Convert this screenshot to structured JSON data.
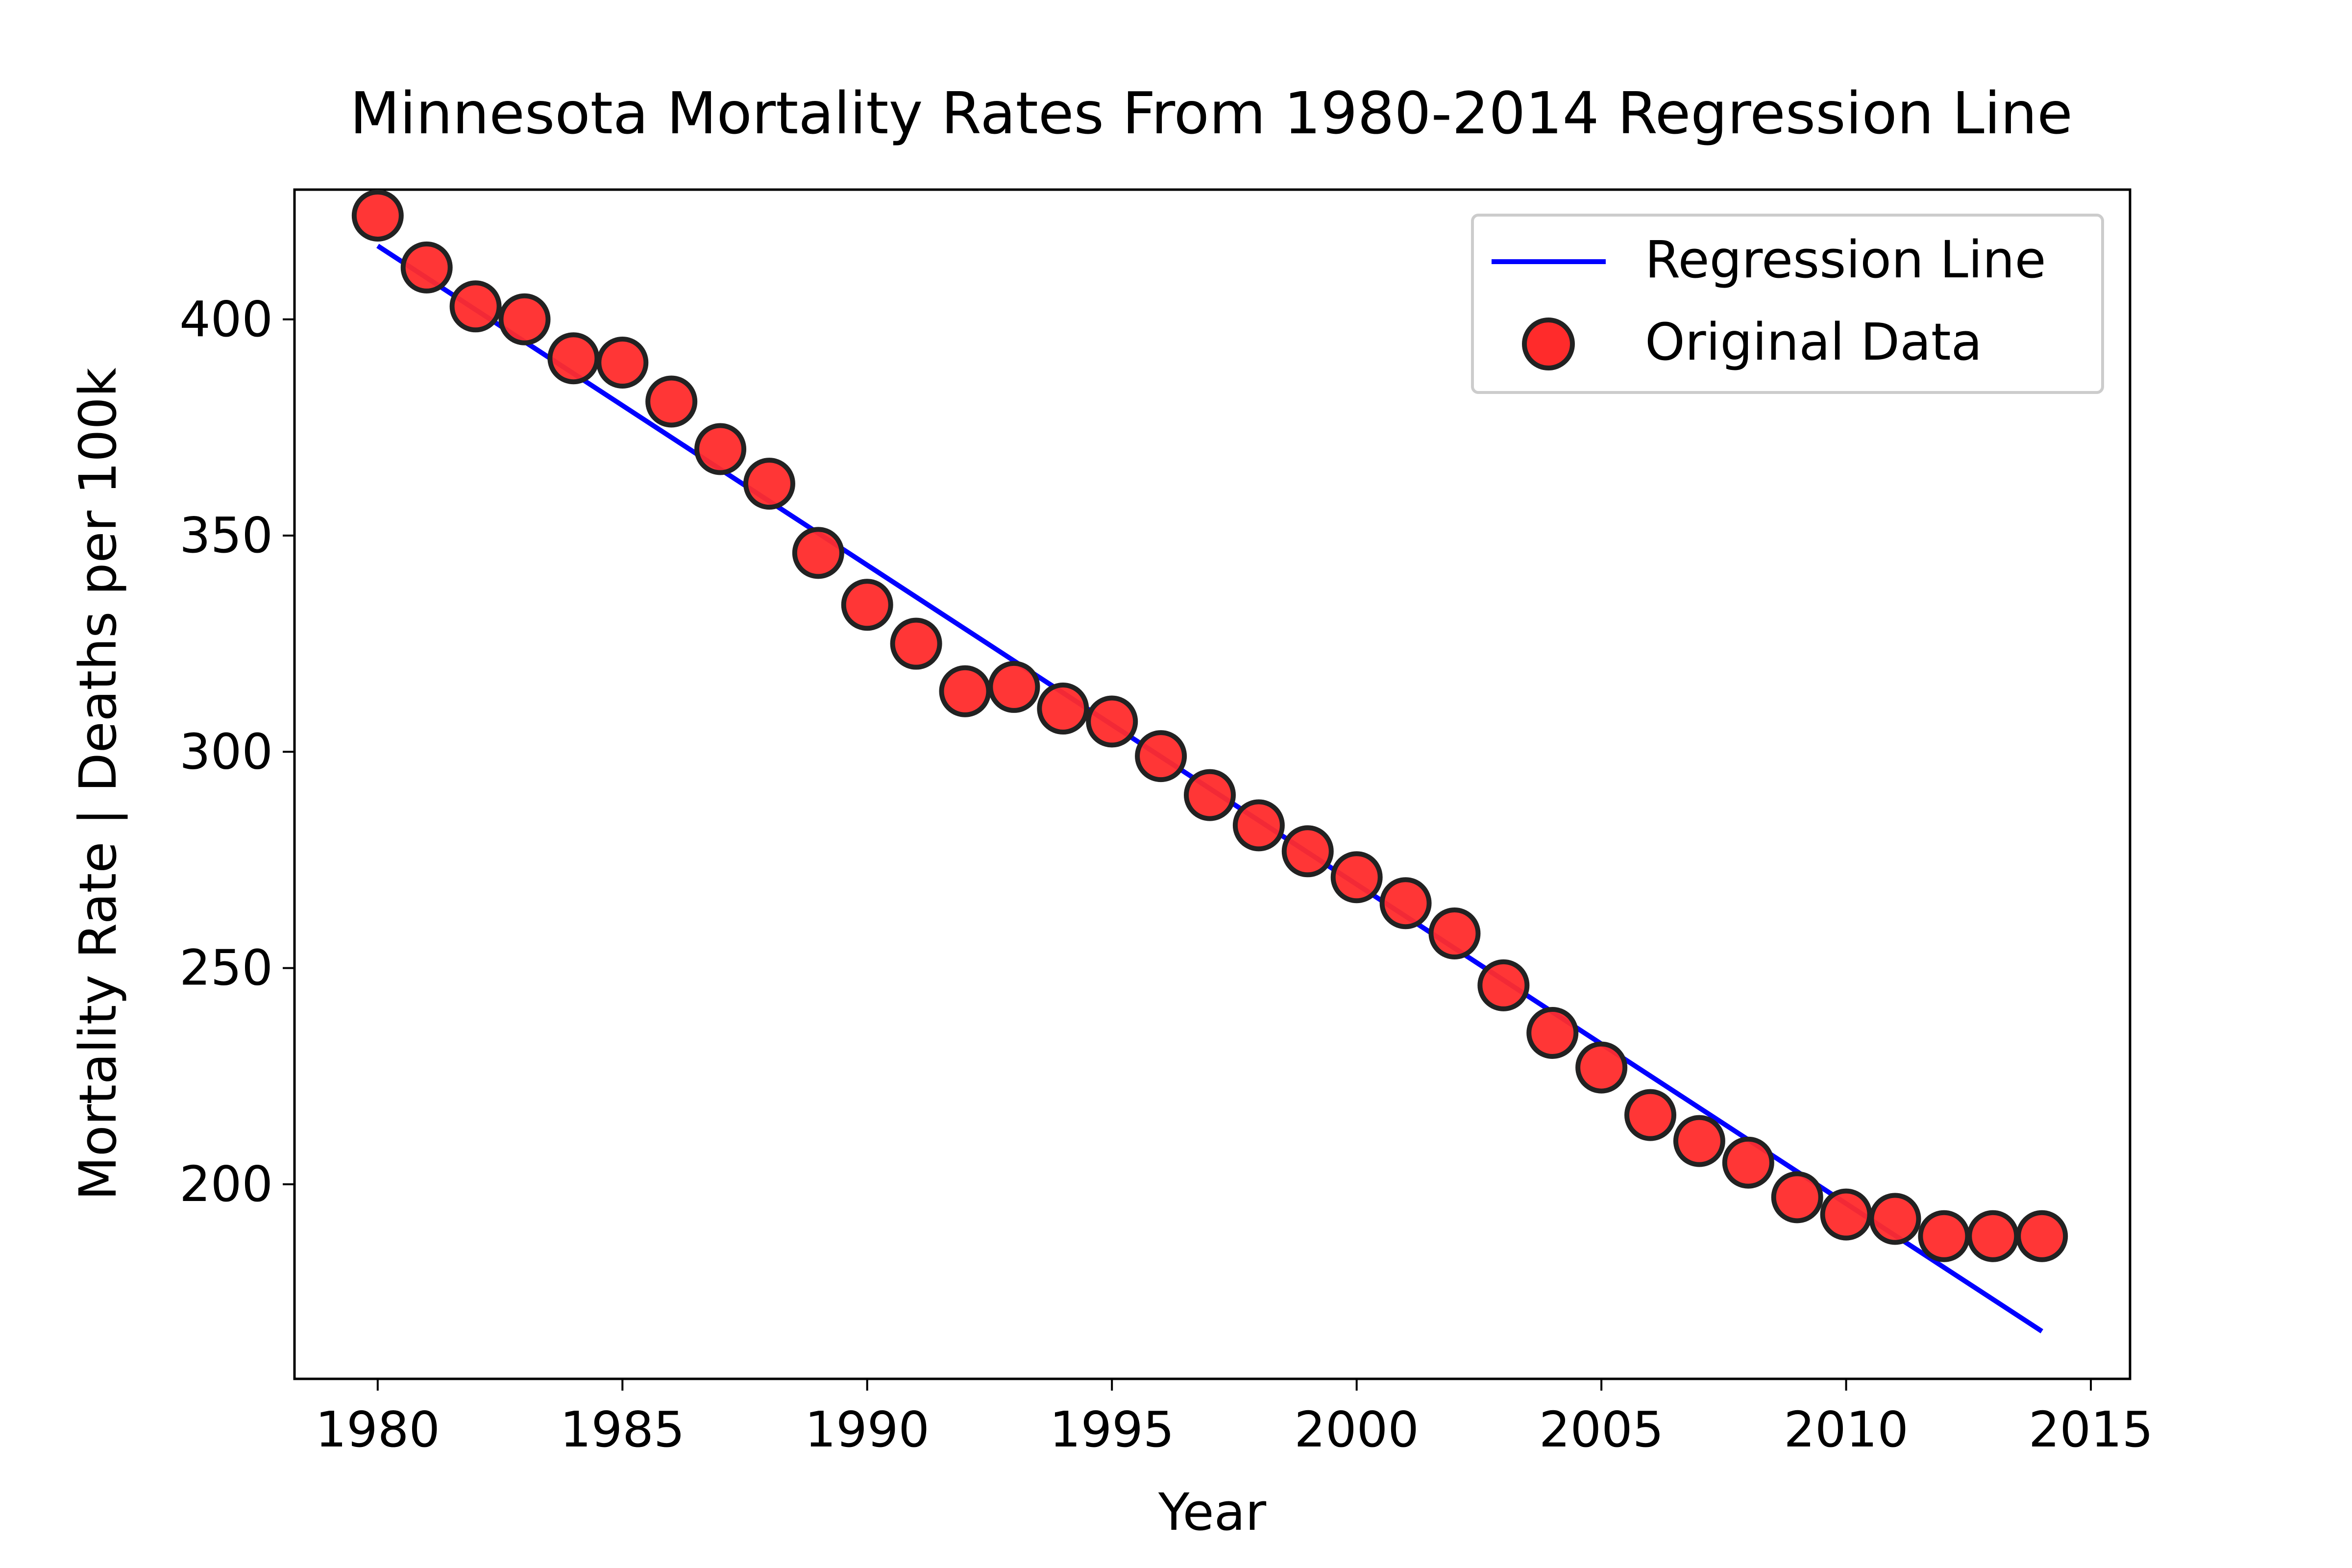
{
  "chart_data": {
    "type": "scatter",
    "title": "Minnesota Mortality Rates From 1980-2014 Regression Line",
    "xlabel": "Year",
    "ylabel": "Mortality Rate | Deaths per 100k",
    "xlim": [
      1978.3,
      2015.8
    ],
    "ylim": [
      155,
      430
    ],
    "x_ticks": [
      1980,
      1985,
      1990,
      1995,
      2000,
      2005,
      2010,
      2015
    ],
    "y_ticks": [
      200,
      250,
      300,
      350,
      400
    ],
    "grid": false,
    "legend": {
      "position": "top-right",
      "entries": [
        "Regression Line",
        "Original Data"
      ]
    },
    "series": [
      {
        "name": "Original Data",
        "type": "scatter",
        "color": "#ff2b2b",
        "edge_color": "#222222",
        "x": [
          1980,
          1981,
          1982,
          1983,
          1984,
          1985,
          1986,
          1987,
          1988,
          1989,
          1990,
          1991,
          1992,
          1993,
          1994,
          1995,
          1996,
          1997,
          1998,
          1999,
          2000,
          2001,
          2002,
          2003,
          2004,
          2005,
          2006,
          2007,
          2008,
          2009,
          2010,
          2011,
          2012,
          2013,
          2014
        ],
        "y": [
          424,
          412,
          403,
          400,
          391,
          390,
          381,
          370,
          362,
          346,
          334,
          325,
          314,
          315,
          310,
          307,
          299,
          290,
          283,
          277,
          271,
          265,
          258,
          246,
          235,
          227,
          216,
          210,
          205,
          197,
          193,
          192,
          188,
          188,
          188
        ]
      },
      {
        "name": "Regression Line",
        "type": "line",
        "color": "#0000ff",
        "x": [
          1980,
          2014
        ],
        "y": [
          417,
          166
        ]
      }
    ]
  }
}
